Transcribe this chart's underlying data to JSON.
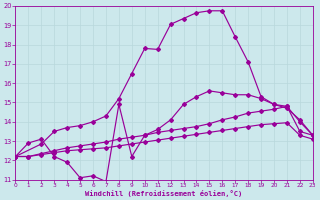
{
  "background_color": "#cce8ec",
  "grid_color": "#aacccc",
  "line_color": "#990099",
  "xlabel": "Windchill (Refroidissement éolien,°C)",
  "xlim": [
    0,
    23
  ],
  "ylim": [
    11,
    20
  ],
  "yticks": [
    11,
    12,
    13,
    14,
    15,
    16,
    17,
    18,
    19,
    20
  ],
  "xticks": [
    0,
    1,
    2,
    3,
    4,
    5,
    6,
    7,
    8,
    9,
    10,
    11,
    12,
    13,
    14,
    15,
    16,
    17,
    18,
    19,
    20,
    21,
    22,
    23
  ],
  "line1_x": [
    0,
    1,
    2,
    3,
    4,
    5,
    6,
    7,
    8,
    9,
    10,
    11,
    12,
    13,
    14,
    15,
    16,
    17,
    18,
    19,
    20,
    21,
    22,
    23
  ],
  "line1_y": [
    12.2,
    12.9,
    13.1,
    12.2,
    11.9,
    11.1,
    11.2,
    10.9,
    14.9,
    12.2,
    13.3,
    13.6,
    14.1,
    14.9,
    15.3,
    15.6,
    15.5,
    15.4,
    15.4,
    15.2,
    14.9,
    14.7,
    14.1,
    13.3
  ],
  "line2_x": [
    0,
    1,
    2,
    3,
    4,
    5,
    6,
    7,
    8,
    9,
    10,
    11,
    12,
    13,
    14,
    15,
    16,
    17,
    18,
    19,
    20,
    21,
    22,
    23
  ],
  "line2_y": [
    12.2,
    12.2,
    12.35,
    12.5,
    12.65,
    12.75,
    12.85,
    12.95,
    13.1,
    13.2,
    13.3,
    13.45,
    13.55,
    13.65,
    13.75,
    13.9,
    14.1,
    14.25,
    14.45,
    14.55,
    14.65,
    14.8,
    13.5,
    13.3
  ],
  "line3_x": [
    0,
    1,
    2,
    3,
    4,
    5,
    6,
    7,
    8,
    9,
    10,
    11,
    12,
    13,
    14,
    15,
    16,
    17,
    18,
    19,
    20,
    21,
    22,
    23
  ],
  "line3_y": [
    12.2,
    12.2,
    12.3,
    12.4,
    12.5,
    12.55,
    12.6,
    12.65,
    12.75,
    12.85,
    12.95,
    13.05,
    13.15,
    13.25,
    13.35,
    13.45,
    13.55,
    13.65,
    13.75,
    13.85,
    13.9,
    13.95,
    13.3,
    13.1
  ],
  "line4_x": [
    0,
    2,
    3,
    4,
    5,
    6,
    7,
    8,
    9,
    10,
    11,
    12,
    13,
    14,
    15,
    16,
    17,
    18,
    19,
    20,
    21,
    22,
    23
  ],
  "line4_y": [
    12.2,
    12.85,
    13.5,
    13.7,
    13.8,
    14.0,
    14.3,
    15.2,
    16.5,
    17.8,
    17.75,
    19.05,
    19.35,
    19.65,
    19.75,
    19.75,
    18.4,
    17.1,
    15.3,
    14.9,
    14.8,
    14.0,
    13.3
  ],
  "marker": "D",
  "marker_size": 2.0,
  "linewidth": 0.85
}
